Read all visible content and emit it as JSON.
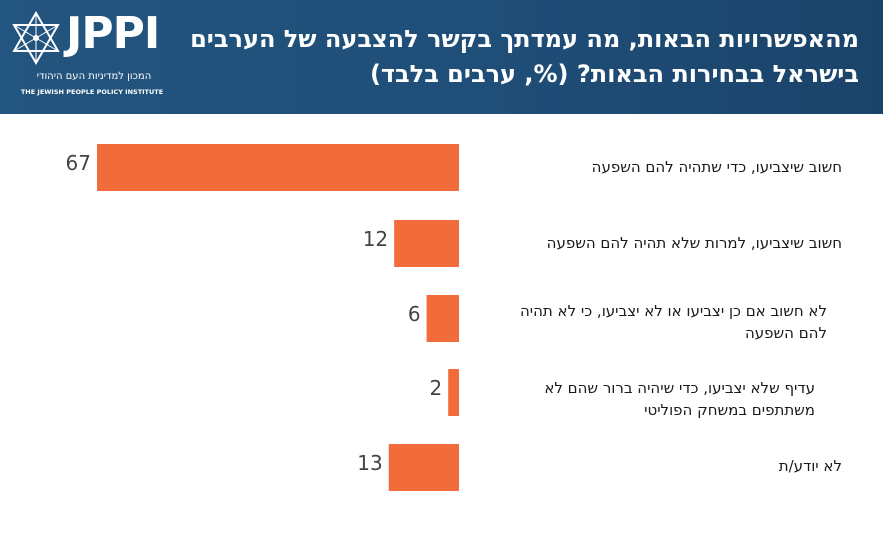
{
  "header": {
    "title": "מהאפשרויות הבאות, מה עמדתך בקשר להצבעה של הערבים בישראל בבחירות הבאות? (%, ערבים בלבד)",
    "logo": {
      "wordmark": "JPPI",
      "hebrew_name": "המכון למדיניות העם היהודי",
      "english_name": "THE JEWISH PEOPLE POLICY INSTITUTE",
      "icon": "star-of-david-icon"
    },
    "background_color": "#1f4e78"
  },
  "chart_data": {
    "type": "bar",
    "orientation": "horizontal",
    "categories": [
      "חשוב שיצביעו, כדי שתהיה להם השפעה",
      "חשוב שיצביעו, למרות שלא תהיה להם השפעה",
      "לא חשוב אם כן יצביעו או לא יצביעו, כי לא תהיה להם השפעה",
      "עדיף שלא יצביעו, כדי שיהיה ברור שהם לא משתתפים במשחק הפוליטי",
      "לא יודע/ת"
    ],
    "values": [
      67,
      12,
      6,
      2,
      13
    ],
    "value_labels": [
      "67",
      "12",
      "6",
      "2",
      "13"
    ],
    "bar_color": "#f26b3a",
    "xlim": [
      0,
      67
    ],
    "grid": false,
    "legend": "none"
  }
}
